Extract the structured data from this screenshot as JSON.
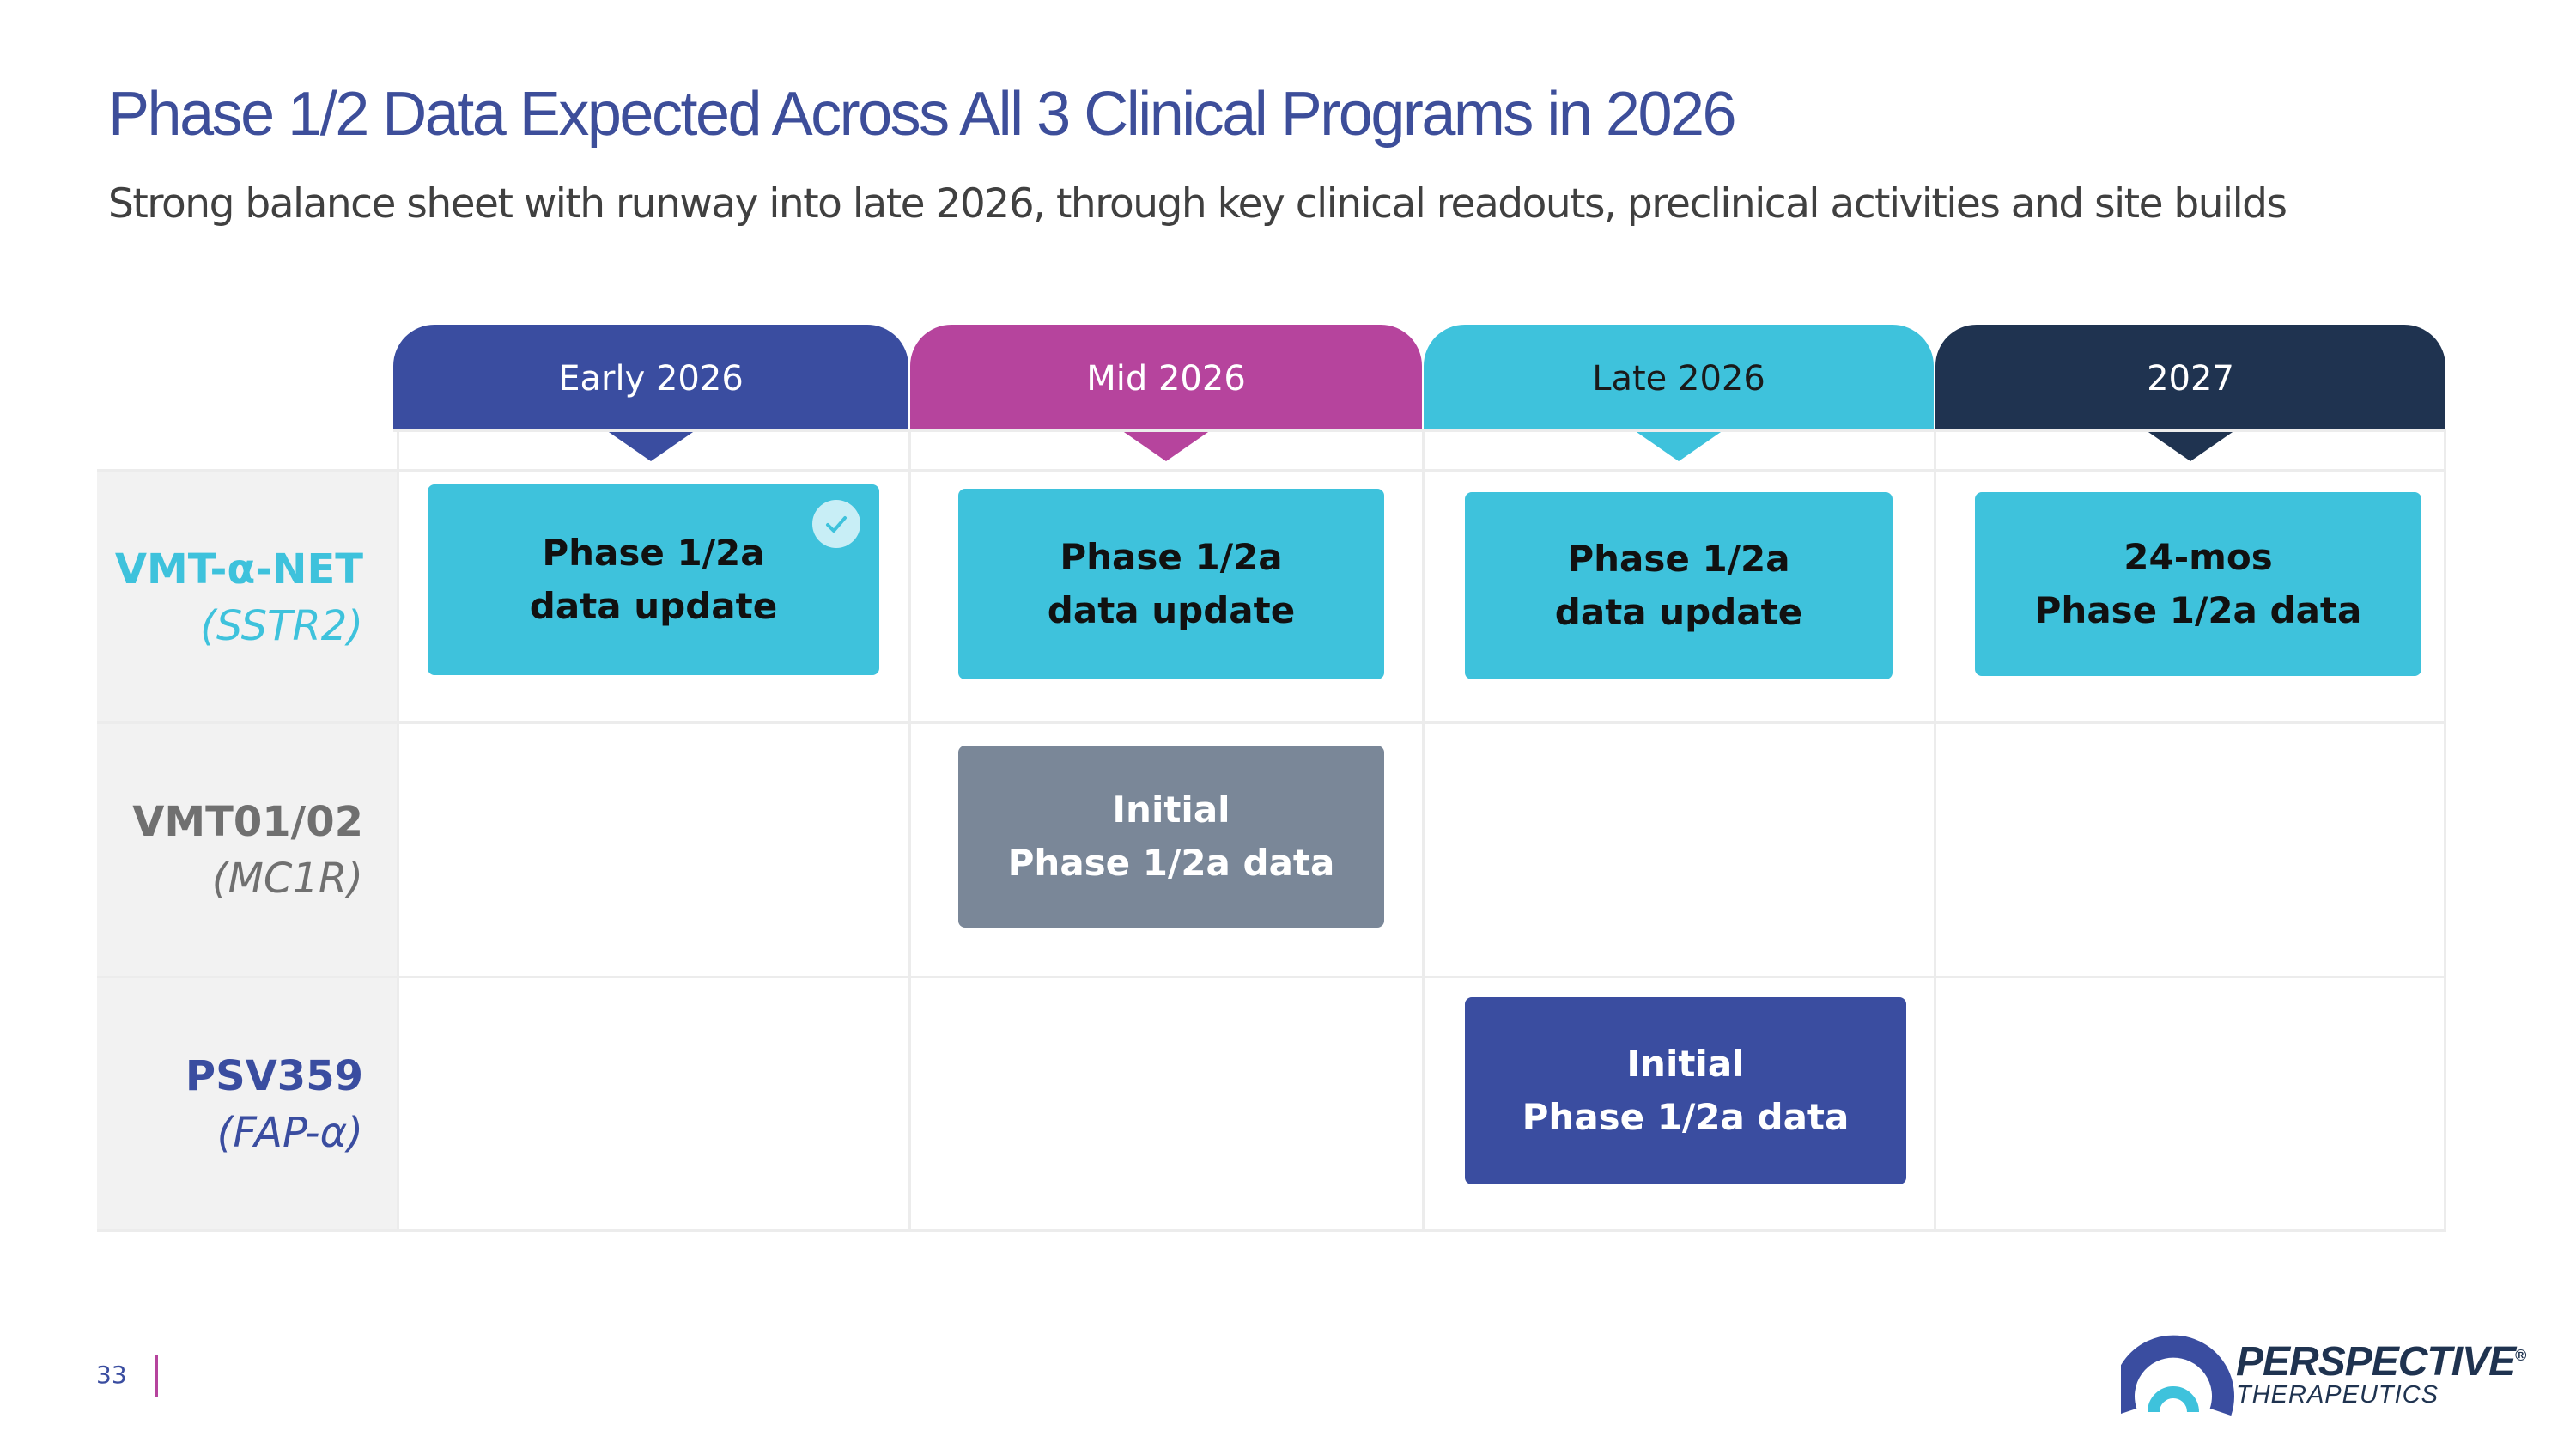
{
  "header": {
    "title": "Phase 1/2 Data Expected Across All 3 Clinical Programs in 2026",
    "subtitle": "Strong balance sheet with runway into late 2026, through key clinical readouts, preclinical activities and site builds"
  },
  "timeline": {
    "periods": [
      "Early 2026",
      "Mid 2026",
      "Late 2026",
      "2027"
    ],
    "colors": {
      "early": "#3a4da0",
      "mid": "#b6449d",
      "late": "#3ec2dc",
      "y2027": "#1f3350"
    }
  },
  "programs": [
    {
      "name": "VMT-α-NET",
      "target": "(SSTR2)"
    },
    {
      "name": "VMT01/02",
      "target": "(MC1R)"
    },
    {
      "name": "PSV359",
      "target": "(FAP-α)"
    }
  ],
  "milestones": {
    "vmt_early": {
      "line1": "Phase 1/2a",
      "line2": "data update",
      "completed": true
    },
    "vmt_mid": {
      "line1": "Phase 1/2a",
      "line2": "data update"
    },
    "vmt_late": {
      "line1": "Phase 1/2a",
      "line2": "data update"
    },
    "vmt_2027": {
      "line1": "24-mos",
      "line2": "Phase 1/2a data"
    },
    "mc1r_mid": {
      "line1": "Initial",
      "line2": "Phase 1/2a data"
    },
    "psv_late": {
      "line1": "Initial",
      "line2": "Phase 1/2a data"
    }
  },
  "footer": {
    "page_number": "33",
    "logo_name": "PERSPECTIVE",
    "logo_sub": "THERAPEUTICS",
    "logo_mark": "®"
  }
}
